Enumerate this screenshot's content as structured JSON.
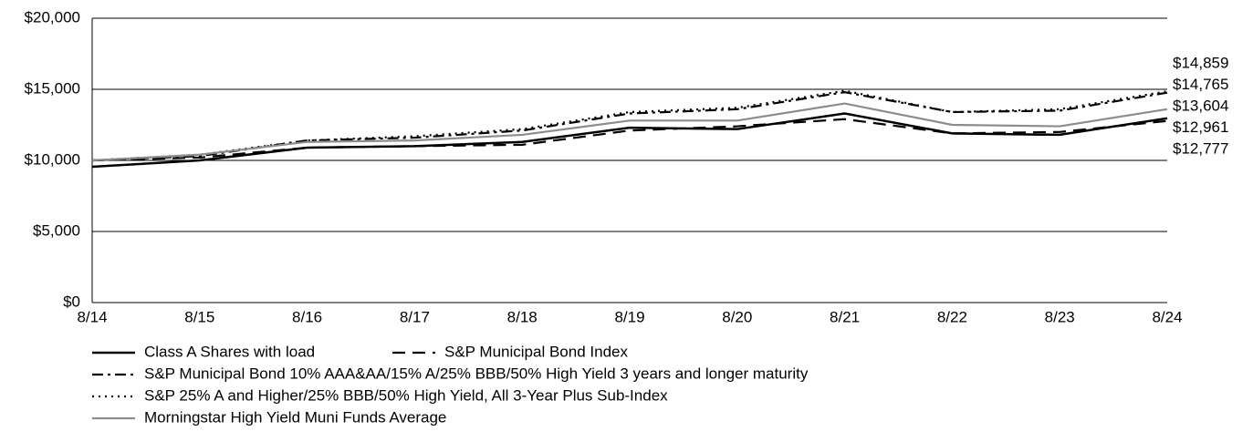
{
  "chart_data": {
    "type": "line",
    "categories": [
      "8/14",
      "8/15",
      "8/16",
      "8/17",
      "8/18",
      "8/19",
      "8/20",
      "8/21",
      "8/22",
      "8/23",
      "8/24"
    ],
    "ylim": [
      0,
      20000
    ],
    "yticks": [
      {
        "value": 0,
        "label": "$0"
      },
      {
        "value": 5000,
        "label": "$5,000"
      },
      {
        "value": 10000,
        "label": "$10,000"
      },
      {
        "value": 15000,
        "label": "$15,000"
      },
      {
        "value": 20000,
        "label": "$20,000"
      }
    ],
    "grid": true,
    "series": [
      {
        "name": "Class A Shares with load",
        "color": "#000000",
        "dash": "solid",
        "values": [
          9550,
          10000,
          10900,
          11000,
          11300,
          12300,
          12200,
          13300,
          11900,
          11800,
          12961
        ],
        "value_labels": [
          null,
          null,
          null,
          null,
          null,
          null,
          null,
          null,
          null,
          null,
          "$12,961"
        ]
      },
      {
        "name": "S&P Municipal Bond Index",
        "color": "#000000",
        "dash": "dashed",
        "values": [
          10000,
          10200,
          10900,
          11000,
          11100,
          12100,
          12400,
          12900,
          11900,
          12000,
          12777
        ],
        "value_labels": [
          null,
          null,
          null,
          null,
          null,
          null,
          null,
          null,
          null,
          null,
          "$12,777"
        ]
      },
      {
        "name": "S&P Municipal Bond 10% AAA&AA/15% A/25% BBB/50% High Yield 3 years and longer maturity",
        "color": "#000000",
        "dash": "dashdot",
        "values": [
          10000,
          10300,
          11400,
          11600,
          12100,
          13300,
          13600,
          14800,
          13400,
          13500,
          14765
        ],
        "value_labels": [
          null,
          null,
          null,
          null,
          null,
          null,
          null,
          null,
          null,
          null,
          "$14,765"
        ]
      },
      {
        "name": "S&P 25% A and Higher/25% BBB/50% High Yield, All 3-Year Plus Sub-Index",
        "color": "#000000",
        "dash": "dotted",
        "values": [
          10000,
          10400,
          11400,
          11700,
          12200,
          13400,
          13700,
          14900,
          13400,
          13600,
          14859
        ],
        "value_labels": [
          null,
          null,
          null,
          null,
          null,
          null,
          null,
          null,
          null,
          null,
          "$14,859"
        ]
      },
      {
        "name": "Morningstar High Yield Muni Funds Average",
        "color": "#8c8c8c",
        "dash": "solid",
        "values": [
          10000,
          10400,
          11300,
          11400,
          11800,
          12800,
          12800,
          14000,
          12500,
          12400,
          13604
        ],
        "value_labels": [
          null,
          null,
          null,
          null,
          null,
          null,
          null,
          null,
          null,
          null,
          "$13,604"
        ]
      }
    ]
  }
}
